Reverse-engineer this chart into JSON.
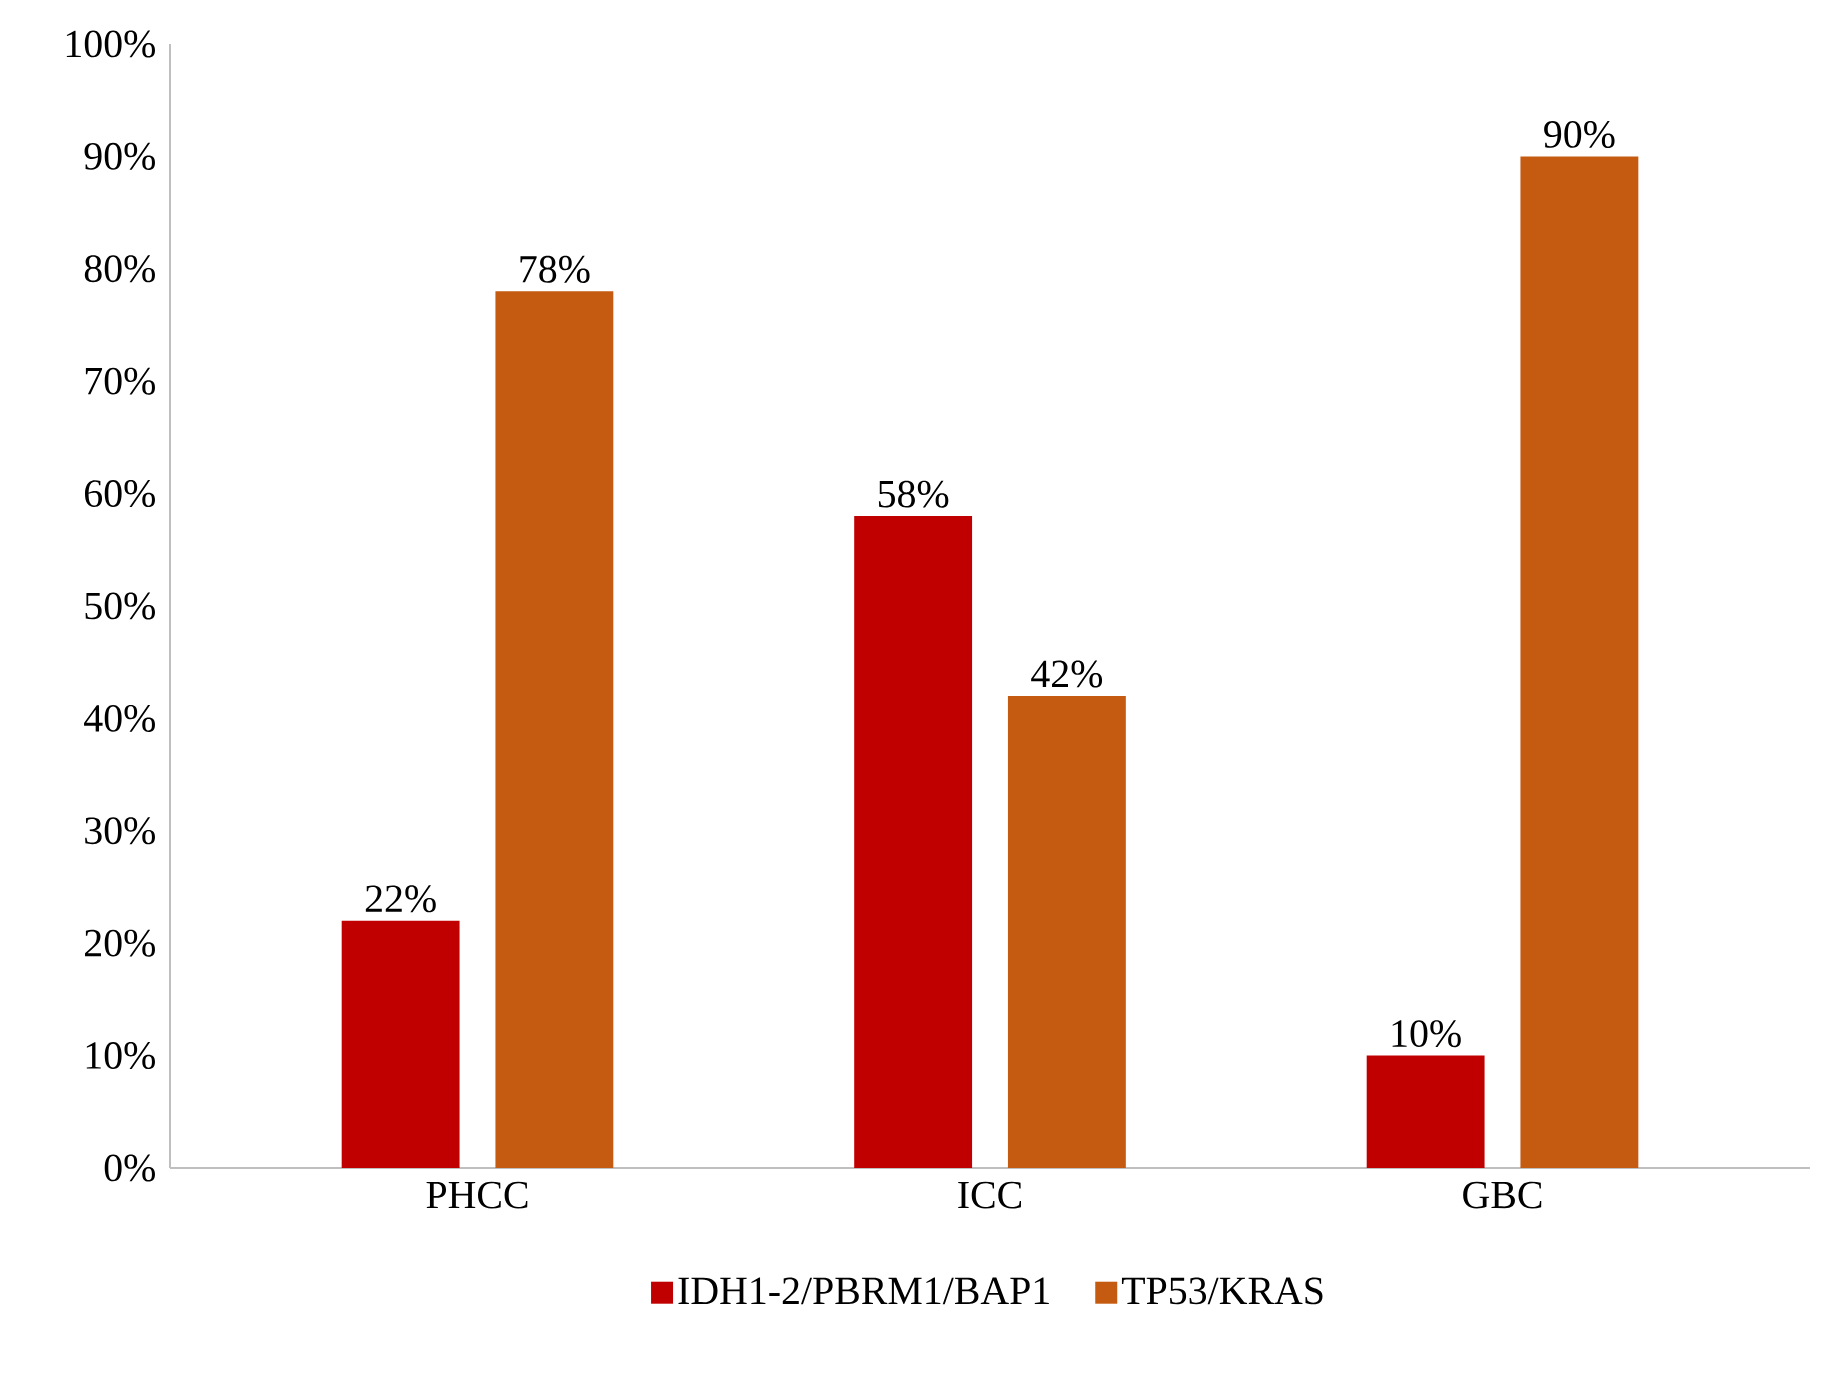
{
  "chart_data": {
    "type": "bar",
    "categories": [
      "PHCC",
      "ICC",
      "GBC"
    ],
    "series": [
      {
        "name": "IDH1-2/PBRM1/BAP1",
        "color": "#c00000",
        "values": [
          22,
          58,
          10
        ],
        "value_labels": [
          "22%",
          "58%",
          "10%"
        ]
      },
      {
        "name": "TP53/KRAS",
        "color": "#c55a11",
        "values": [
          78,
          42,
          90
        ],
        "value_labels": [
          "78%",
          "42%",
          "90%"
        ]
      }
    ],
    "ylim": [
      0,
      100
    ],
    "yticks": [
      {
        "value": 0,
        "label": "0%"
      },
      {
        "value": 10,
        "label": "10%"
      },
      {
        "value": 20,
        "label": "20%"
      },
      {
        "value": 30,
        "label": "30%"
      },
      {
        "value": 40,
        "label": "40%"
      },
      {
        "value": 50,
        "label": "50%"
      },
      {
        "value": 60,
        "label": "60%"
      },
      {
        "value": 70,
        "label": "70%"
      },
      {
        "value": 80,
        "label": "80%"
      },
      {
        "value": 90,
        "label": "90%"
      },
      {
        "value": 100,
        "label": "100%"
      }
    ],
    "grid": false,
    "legend": "bottom"
  }
}
